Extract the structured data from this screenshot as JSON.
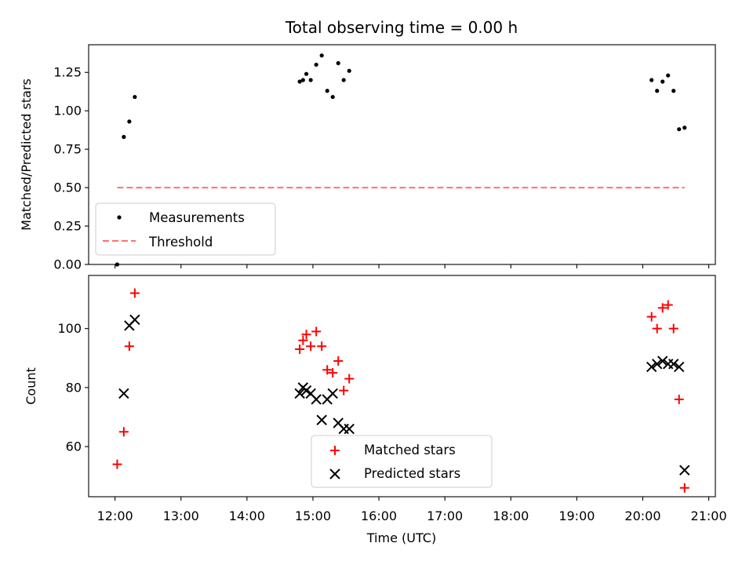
{
  "chart_data": [
    {
      "type": "scatter",
      "title": "Total observing time = 0.00 h",
      "xlabel": "",
      "ylabel": "Matched/Predicted stars",
      "xlim": [
        "11:36",
        "21:06"
      ],
      "ylim": [
        0.0,
        1.43
      ],
      "yticks": [
        "0.00",
        "0.25",
        "0.50",
        "0.75",
        "1.00",
        "1.25"
      ],
      "legend": "lower-left",
      "grid": false,
      "series": [
        {
          "name": "Measurements",
          "marker": "dot",
          "color": "#000000",
          "points": [
            [
              "12:02",
              0.0
            ],
            [
              "12:08",
              0.83
            ],
            [
              "12:13",
              0.93
            ],
            [
              "12:18",
              1.09
            ],
            [
              "14:48",
              1.19
            ],
            [
              "14:51",
              1.2
            ],
            [
              "14:54",
              1.24
            ],
            [
              "14:58",
              1.2
            ],
            [
              "15:03",
              1.3
            ],
            [
              "15:08",
              1.36
            ],
            [
              "15:13",
              1.13
            ],
            [
              "15:18",
              1.09
            ],
            [
              "15:23",
              1.31
            ],
            [
              "15:28",
              1.2
            ],
            [
              "15:33",
              1.26
            ],
            [
              "20:08",
              1.2
            ],
            [
              "20:13",
              1.13
            ],
            [
              "20:18",
              1.19
            ],
            [
              "20:23",
              1.23
            ],
            [
              "20:28",
              1.13
            ],
            [
              "20:33",
              0.88
            ],
            [
              "20:38",
              0.89
            ]
          ]
        },
        {
          "name": "Threshold",
          "marker": "dashed-line",
          "color": "#ff7070",
          "points": [
            [
              "12:02",
              0.5
            ],
            [
              "20:38",
              0.5
            ]
          ]
        }
      ]
    },
    {
      "type": "scatter",
      "title": "",
      "xlabel": "Time (UTC)",
      "ylabel": "Count",
      "xlim": [
        "11:36",
        "21:06"
      ],
      "ylim": [
        43,
        118
      ],
      "yticks": [
        "60",
        "80",
        "100"
      ],
      "xticks": [
        "12:00",
        "13:00",
        "14:00",
        "15:00",
        "16:00",
        "17:00",
        "18:00",
        "19:00",
        "20:00",
        "21:00"
      ],
      "legend": "bottom-center",
      "grid": false,
      "series": [
        {
          "name": "Matched stars",
          "marker": "plus",
          "color": "#ff0000",
          "points": [
            [
              "12:02",
              54
            ],
            [
              "12:08",
              65
            ],
            [
              "12:13",
              94
            ],
            [
              "12:18",
              112
            ],
            [
              "14:48",
              93
            ],
            [
              "14:51",
              96
            ],
            [
              "14:54",
              98
            ],
            [
              "14:58",
              94
            ],
            [
              "15:03",
              99
            ],
            [
              "15:08",
              94
            ],
            [
              "15:13",
              86
            ],
            [
              "15:18",
              85
            ],
            [
              "15:23",
              89
            ],
            [
              "15:28",
              79
            ],
            [
              "15:33",
              83
            ],
            [
              "20:08",
              104
            ],
            [
              "20:13",
              100
            ],
            [
              "20:18",
              107
            ],
            [
              "20:23",
              108
            ],
            [
              "20:28",
              100
            ],
            [
              "20:33",
              76
            ],
            [
              "20:38",
              46
            ]
          ]
        },
        {
          "name": "Predicted stars",
          "marker": "x",
          "color": "#000000",
          "points": [
            [
              "12:08",
              78
            ],
            [
              "12:13",
              101
            ],
            [
              "12:18",
              103
            ],
            [
              "14:48",
              78
            ],
            [
              "14:51",
              80
            ],
            [
              "14:54",
              79
            ],
            [
              "14:58",
              78
            ],
            [
              "15:03",
              76
            ],
            [
              "15:08",
              69
            ],
            [
              "15:13",
              76
            ],
            [
              "15:18",
              78
            ],
            [
              "15:23",
              68
            ],
            [
              "15:28",
              66
            ],
            [
              "15:33",
              66
            ],
            [
              "20:08",
              87
            ],
            [
              "20:13",
              88
            ],
            [
              "20:18",
              89
            ],
            [
              "20:23",
              88
            ],
            [
              "20:28",
              88
            ],
            [
              "20:33",
              87
            ],
            [
              "20:38",
              52
            ]
          ]
        }
      ]
    }
  ]
}
